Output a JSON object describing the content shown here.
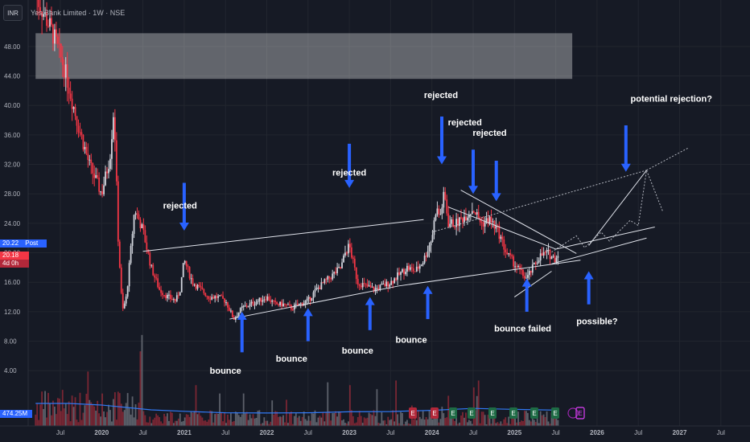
{
  "header": {
    "currency": "INR",
    "symbol_text": "Yes Bank Limited · 1W · NSE"
  },
  "price_tags": {
    "post_value": "20.22",
    "post_label": "Post",
    "last_value": "20.18",
    "countdown": "4d 0h",
    "volume_value": "474.25M"
  },
  "colors": {
    "background": "#161a25",
    "up": "#d1d4dc",
    "down": "#f23645",
    "volume_ma": "#3179f5",
    "arrow": "#2962ff",
    "line": "#e0e3eb",
    "zone": "#868993",
    "post_tag": "#2962ff",
    "last_tag": "#f23645"
  },
  "event_badges": [
    "E",
    "E",
    "E",
    "E",
    "E",
    "E",
    "E",
    "E",
    "E",
    "E",
    "E"
  ],
  "chart_data": {
    "type": "candlestick",
    "title": "",
    "xlabel": "",
    "ylabel": "",
    "ylim": [
      2.5,
      53
    ],
    "y_ticks": [
      "4.00",
      "8.00",
      "12.00",
      "16.00",
      "20.00",
      "24.00",
      "28.00",
      "32.00",
      "36.00",
      "40.00",
      "44.00",
      "48.00"
    ],
    "x_ticks": [
      "Jul",
      "2020",
      "Jul",
      "2021",
      "Jul",
      "2022",
      "Jul",
      "2023",
      "Jul",
      "2024",
      "Jul",
      "2025",
      "Jul",
      "2026",
      "Jul",
      "2027",
      "Jul"
    ],
    "x_tick_dates": [
      2019.5,
      2020,
      2020.5,
      2021,
      2021.5,
      2022,
      2022.5,
      2023,
      2023.5,
      2024,
      2024.5,
      2025,
      2025.5,
      2026,
      2026.5,
      2027,
      2027.5
    ],
    "grid": true,
    "resistance_zone": {
      "from": 43.6,
      "to": 49.8,
      "x_from": 2019.2,
      "x_to": 2025.7
    },
    "price_path": [
      [
        2019.2,
        55
      ],
      [
        2019.4,
        50
      ],
      [
        2019.55,
        45
      ],
      [
        2019.7,
        38
      ],
      [
        2019.85,
        32
      ],
      [
        2020.0,
        28
      ],
      [
        2020.1,
        33
      ],
      [
        2020.15,
        40
      ],
      [
        2020.2,
        22
      ],
      [
        2020.25,
        12
      ],
      [
        2020.3,
        14
      ],
      [
        2020.4,
        26
      ],
      [
        2020.5,
        23
      ],
      [
        2020.6,
        18
      ],
      [
        2020.7,
        15
      ],
      [
        2020.8,
        14
      ],
      [
        2020.9,
        13.5
      ],
      [
        2020.95,
        15
      ],
      [
        2021.0,
        19
      ],
      [
        2021.1,
        16
      ],
      [
        2021.2,
        15
      ],
      [
        2021.3,
        14
      ],
      [
        2021.4,
        14
      ],
      [
        2021.5,
        13.5
      ],
      [
        2021.6,
        11
      ],
      [
        2021.7,
        12.5
      ],
      [
        2021.8,
        13
      ],
      [
        2021.9,
        13.5
      ],
      [
        2022.0,
        14
      ],
      [
        2022.1,
        13
      ],
      [
        2022.2,
        13
      ],
      [
        2022.3,
        12.5
      ],
      [
        2022.4,
        13
      ],
      [
        2022.5,
        13.5
      ],
      [
        2022.6,
        15
      ],
      [
        2022.7,
        16
      ],
      [
        2022.8,
        17
      ],
      [
        2022.9,
        18
      ],
      [
        2022.95,
        20
      ],
      [
        2023.0,
        21
      ],
      [
        2023.1,
        16
      ],
      [
        2023.2,
        15.5
      ],
      [
        2023.3,
        15
      ],
      [
        2023.4,
        15.5
      ],
      [
        2023.5,
        16
      ],
      [
        2023.6,
        17
      ],
      [
        2023.7,
        18
      ],
      [
        2023.8,
        17.5
      ],
      [
        2023.9,
        19
      ],
      [
        2024.0,
        22
      ],
      [
        2024.05,
        26
      ],
      [
        2024.1,
        25
      ],
      [
        2024.15,
        28
      ],
      [
        2024.2,
        24
      ],
      [
        2024.3,
        24
      ],
      [
        2024.4,
        25
      ],
      [
        2024.5,
        26
      ],
      [
        2024.6,
        24
      ],
      [
        2024.7,
        24.5
      ],
      [
        2024.8,
        23
      ],
      [
        2024.9,
        20
      ],
      [
        2025.0,
        18.5
      ],
      [
        2025.1,
        17
      ],
      [
        2025.15,
        16.5
      ],
      [
        2025.2,
        17.5
      ],
      [
        2025.3,
        19.5
      ],
      [
        2025.4,
        20
      ],
      [
        2025.45,
        19.5
      ],
      [
        2025.5,
        19.2
      ],
      [
        2025.53,
        20.18
      ]
    ],
    "ma_path": [
      [
        2019.2,
        55
      ],
      [
        2019.6,
        42
      ],
      [
        2020.0,
        30
      ],
      [
        2020.3,
        25
      ],
      [
        2020.6,
        20
      ],
      [
        2021.0,
        17
      ],
      [
        2021.5,
        14
      ],
      [
        2022.0,
        13.5
      ],
      [
        2022.5,
        14
      ],
      [
        2023.0,
        16
      ],
      [
        2023.5,
        16.5
      ],
      [
        2024.0,
        19
      ],
      [
        2024.5,
        23
      ],
      [
        2025.0,
        21
      ],
      [
        2025.5,
        19.5
      ]
    ],
    "lines": [
      [
        [
          2020.5,
          20.2
        ],
        [
          2023.9,
          24.5
        ]
      ],
      [
        [
          2021.55,
          11.0
        ],
        [
          2023.6,
          15.5
        ]
      ],
      [
        [
          2023.6,
          15.5
        ],
        [
          2025.8,
          19.0
        ]
      ],
      [
        [
          2024.2,
          26.2
        ],
        [
          2025.5,
          20.5
        ]
      ],
      [
        [
          2024.35,
          28.5
        ],
        [
          2025.75,
          19.9
        ]
      ],
      [
        [
          2025.0,
          14.0
        ],
        [
          2025.45,
          17.5
        ]
      ],
      [
        [
          2025.45,
          18.5
        ],
        [
          2026.6,
          22.0
        ]
      ],
      [
        [
          2025.5,
          20.5
        ],
        [
          2026.7,
          23.5
        ]
      ],
      [
        [
          2025.9,
          21.0
        ],
        [
          2026.6,
          31.2
        ]
      ],
      [
        [
          2024.0,
          22.8
        ],
        [
          2026.6,
          31.2
        ]
      ],
      [
        [
          2026.6,
          31.2
        ],
        [
          2027.1,
          34.2
        ]
      ]
    ],
    "annotations": [
      {
        "text": "rejected",
        "x": 2020.95,
        "y": 26.0
      },
      {
        "text": "rejected",
        "x": 2023.0,
        "y": 30.5
      },
      {
        "text": "rejected",
        "x": 2024.11,
        "y": 41.0
      },
      {
        "text": "rejected",
        "x": 2024.4,
        "y": 37.3
      },
      {
        "text": "rejected",
        "x": 2024.7,
        "y": 35.9
      },
      {
        "text": "potential rejection?",
        "x": 2026.9,
        "y": 40.5
      },
      {
        "text": "bounce",
        "x": 2021.5,
        "y": 3.6
      },
      {
        "text": "bounce",
        "x": 2022.3,
        "y": 5.2
      },
      {
        "text": "bounce",
        "x": 2023.1,
        "y": 6.3
      },
      {
        "text": "bounce",
        "x": 2023.75,
        "y": 7.8
      },
      {
        "text": "bounce failed",
        "x": 2025.1,
        "y": 9.3
      },
      {
        "text": "possible?",
        "x": 2026.0,
        "y": 10.3
      }
    ],
    "arrows": [
      {
        "x": 2021.0,
        "from": 29.5,
        "to": 23.0
      },
      {
        "x": 2023.0,
        "from": 34.8,
        "to": 28.8
      },
      {
        "x": 2024.12,
        "from": 38.5,
        "to": 32.0
      },
      {
        "x": 2024.5,
        "from": 34.0,
        "to": 28.0
      },
      {
        "x": 2024.78,
        "from": 32.5,
        "to": 27.0
      },
      {
        "x": 2026.35,
        "from": 37.3,
        "to": 31.0
      },
      {
        "x": 2021.7,
        "from": 6.5,
        "to": 12.0
      },
      {
        "x": 2022.5,
        "from": 8.0,
        "to": 12.5
      },
      {
        "x": 2023.25,
        "from": 9.5,
        "to": 14.0
      },
      {
        "x": 2023.95,
        "from": 11.0,
        "to": 15.5
      },
      {
        "x": 2025.15,
        "from": 12.0,
        "to": 16.5
      },
      {
        "x": 2025.9,
        "from": 13.0,
        "to": 17.5
      }
    ]
  }
}
